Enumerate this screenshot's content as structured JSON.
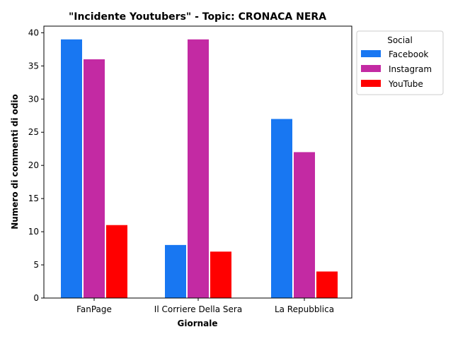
{
  "chart_data": {
    "type": "bar",
    "title": "\"Incidente Youtubers\" - Topic: CRONACA NERA",
    "xlabel": "Giornale",
    "ylabel": "Numero di commenti di odio",
    "categories": [
      "FanPage",
      "Il Corriere Della Sera",
      "La Repubblica"
    ],
    "series": [
      {
        "name": "Facebook",
        "color": "#1877f2",
        "values": [
          39,
          8,
          27
        ]
      },
      {
        "name": "Instagram",
        "color": "#c32aa3",
        "values": [
          36,
          39,
          22
        ]
      },
      {
        "name": "YouTube",
        "color": "#ff0000",
        "values": [
          11,
          7,
          4
        ]
      }
    ],
    "ylim": [
      0,
      41
    ],
    "yticks": [
      0,
      5,
      10,
      15,
      20,
      25,
      30,
      35,
      40
    ],
    "legend": {
      "title": "Social",
      "position": "upper-right-outside"
    },
    "grid": false
  }
}
